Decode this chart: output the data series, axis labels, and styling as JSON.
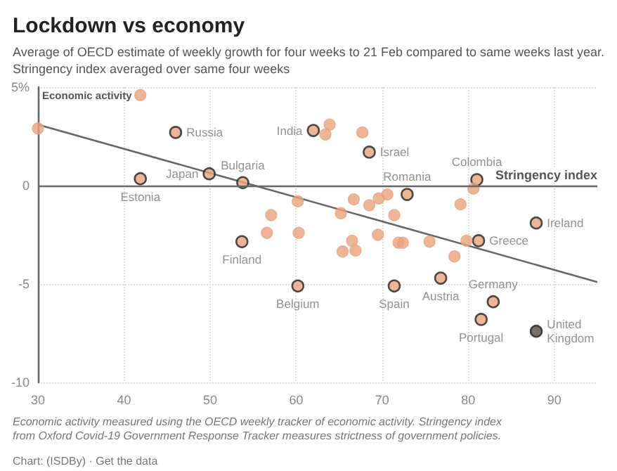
{
  "chart_data": {
    "type": "scatter",
    "title": "Lockdown vs economy",
    "subtitle": "Average of OECD estimate of weekly growth for four weeks to 21 Feb compared to same weeks last year. Stringency index averaged over same four weeks",
    "xlabel": "Stringency index",
    "ylabel": "Economic activity",
    "xlim": [
      30,
      95
    ],
    "xticks": [
      30,
      40,
      50,
      60,
      70,
      80,
      90
    ],
    "ylim": [
      -10,
      5
    ],
    "yticks": [
      -10,
      -5,
      0,
      {
        "value": 5,
        "label": "5%"
      }
    ],
    "grid": true,
    "marker": "circle",
    "ref_lines": [
      {
        "axis": "y",
        "value": 0,
        "color": "#666666"
      }
    ],
    "series": [
      {
        "color": "#e8a27c",
        "colors": [
          "#e8a27c",
          "#e8a27c",
          "#e8a27c",
          "#e8a27c",
          "#e8a27c",
          "#e8a27c",
          "#e8a27c",
          "#e8a27c",
          "#e8a27c",
          "#e8a27c",
          "#e8a27c",
          "#e8a27c",
          "#e8a27c",
          "#e8a27c",
          "#e8a27c",
          "#e8a27c",
          "#5e4b42",
          "#e8a27c",
          "#e8a27c",
          "#e8a27c",
          "#e8a27c",
          "#e8a27c",
          "#e8a27c",
          "#e8a27c",
          "#e8a27c",
          "#e8a27c",
          "#e8a27c",
          "#e8a27c",
          "#e8a27c",
          "#e8a27c",
          "#e8a27c",
          "#e8a27c",
          "#e8a27c",
          "#e8a27c",
          "#e8a27c",
          "#e8a27c",
          "#e8a27c",
          "#e8a27c",
          "#e8a27c",
          "#e8a27c",
          "#e8a27c",
          "#e8a27c",
          "#e8a27c"
        ],
        "x": [
          46,
          62,
          68.5,
          49.9,
          53.8,
          41.9,
          72.9,
          81,
          87.9,
          53.7,
          81.2,
          60.2,
          71.4,
          76.8,
          82.9,
          81.5,
          87.9,
          30,
          41.9,
          60.2,
          57.1,
          56.6,
          60.3,
          63.9,
          63.4,
          67.7,
          80.6,
          66.7,
          68.5,
          69.6,
          70.6,
          65.2,
          71.4,
          79.1,
          66.5,
          65.4,
          66.9,
          69.5,
          71.9,
          72.4,
          75.5,
          78.4,
          79.8
        ],
        "values": [
          2.7,
          2.8,
          1.7,
          0.6,
          0.15,
          0.35,
          -0.45,
          0.3,
          -1.9,
          -2.85,
          -2.8,
          -5.1,
          -5.1,
          -4.7,
          -5.9,
          -6.8,
          -7.4,
          2.9,
          4.6,
          -0.8,
          -1.5,
          -2.4,
          -2.4,
          3.1,
          2.6,
          2.7,
          -0.15,
          -0.7,
          -1.0,
          -0.65,
          -0.45,
          -1.4,
          -1.5,
          -0.95,
          -2.8,
          -3.35,
          -3.3,
          -2.5,
          -2.9,
          -2.9,
          -2.85,
          -3.6,
          -2.8
        ],
        "value_labels": [
          "Russia",
          "India",
          "Israel",
          "Japan",
          "Bulgaria",
          "Estonia",
          "Romania",
          "Colombia",
          "Ireland",
          "Finland",
          "Greece",
          "Belgium",
          "Spain",
          "Austria",
          "Germany",
          "Portugal",
          "United Kingdom",
          null,
          null,
          null,
          null,
          null,
          null,
          null,
          null,
          null,
          null,
          null,
          null,
          null,
          null,
          null,
          null,
          null,
          null,
          null,
          null,
          null,
          null,
          null,
          null,
          null,
          null
        ]
      },
      {
        "type": "line",
        "color": "#666666",
        "x": [
          30,
          95
        ],
        "values": [
          3.1,
          -4.9
        ],
        "marker": "none"
      }
    ],
    "annotations": [
      "Economic activity measured using the OECD weekly tracker of economic activity. Stringency index from Oxford Covid-19 Government Response Tracker measures strictness of government policies.",
      "Chart: (ISDBy) · Get the data"
    ]
  }
}
